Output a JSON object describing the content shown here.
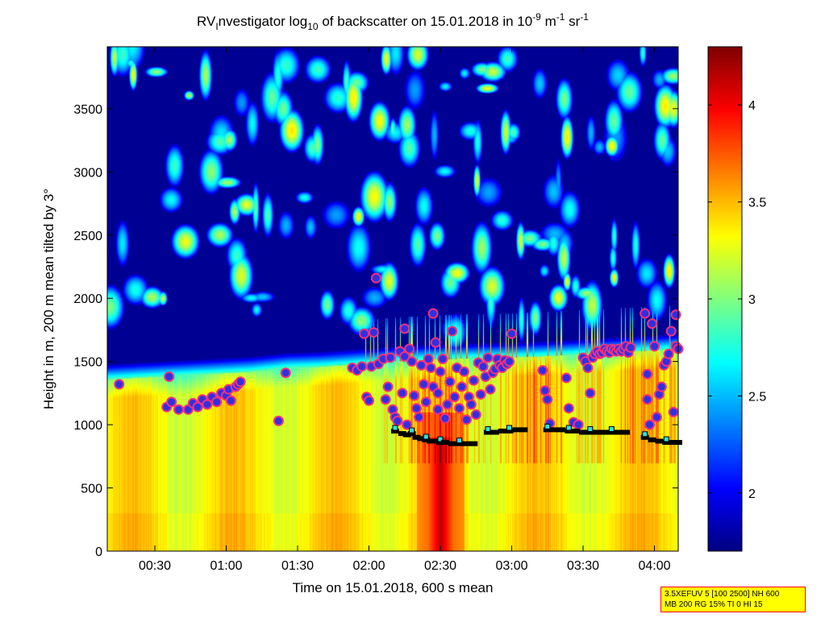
{
  "title": {
    "part1": "RV",
    "part2_sub": "I",
    "part3": "nvestigator log",
    "part4_sub": "10",
    "part5": " of backscatter on 15.01.2018 in 10",
    "part6_sup": "-9",
    "part7": " m",
    "part8_sup": "-1",
    "part9": " sr",
    "part10_sup": "-1"
  },
  "info_box": {
    "line1": "3.5XEFUV 5 [100 2500] NH 600",
    "line2": "MB 200 RG 15% TI 0 HI 15"
  },
  "chart_data": {
    "type": "heatmap",
    "xlabel": "Time on 15.01.2018, 600 s mean",
    "ylabel": "Height in m, 200 m mean tilted by 3°",
    "xlim_min": [
      10,
      250
    ],
    "ylim": [
      0,
      3990
    ],
    "x_ticks": [
      {
        "min": 30,
        "label": "00:30"
      },
      {
        "min": 60,
        "label": "01:00"
      },
      {
        "min": 90,
        "label": "01:30"
      },
      {
        "min": 120,
        "label": "02:00"
      },
      {
        "min": 150,
        "label": "02:30"
      },
      {
        "min": 180,
        "label": "03:00"
      },
      {
        "min": 210,
        "label": "03:30"
      },
      {
        "min": 240,
        "label": "04:00"
      }
    ],
    "y_ticks": [
      {
        "value": 0,
        "label": "0"
      },
      {
        "value": 500,
        "label": "500"
      },
      {
        "value": 1000,
        "label": "1000"
      },
      {
        "value": 1500,
        "label": "1500"
      },
      {
        "value": 2000,
        "label": "2000"
      },
      {
        "value": 2500,
        "label": "2500"
      },
      {
        "value": 3000,
        "label": "3000"
      },
      {
        "value": 3500,
        "label": "3500"
      }
    ],
    "colorbar": {
      "range": [
        1.7,
        4.3
      ],
      "ticks": [
        {
          "value": 2,
          "label": "2"
        },
        {
          "value": 2.5,
          "label": "2.5"
        },
        {
          "value": 3,
          "label": "3"
        },
        {
          "value": 3.5,
          "label": "3.5"
        },
        {
          "value": 4,
          "label": "4"
        }
      ],
      "colormap": "jet"
    },
    "boundary_layer_top": [
      [
        10,
        1360
      ],
      [
        30,
        1380
      ],
      [
        50,
        1400
      ],
      [
        70,
        1420
      ],
      [
        85,
        1450
      ],
      [
        100,
        1460
      ],
      [
        115,
        1480
      ],
      [
        130,
        1500
      ],
      [
        150,
        1520
      ],
      [
        170,
        1530
      ],
      [
        190,
        1540
      ],
      [
        210,
        1560
      ],
      [
        230,
        1580
      ],
      [
        250,
        1600
      ]
    ],
    "layer_markers": [
      [
        15,
        1320
      ],
      [
        35,
        1140
      ],
      [
        36,
        1380
      ],
      [
        37,
        1180
      ],
      [
        40,
        1120
      ],
      [
        44,
        1120
      ],
      [
        46,
        1170
      ],
      [
        48,
        1140
      ],
      [
        50,
        1200
      ],
      [
        52,
        1160
      ],
      [
        54,
        1220
      ],
      [
        56,
        1180
      ],
      [
        58,
        1250
      ],
      [
        60,
        1230
      ],
      [
        61,
        1280
      ],
      [
        62,
        1190
      ],
      [
        64,
        1300
      ],
      [
        65,
        1320
      ],
      [
        66,
        1340
      ],
      [
        82,
        1030
      ],
      [
        85,
        1410
      ],
      [
        113,
        1450
      ],
      [
        115,
        1430
      ],
      [
        117,
        1460
      ],
      [
        118,
        1720
      ],
      [
        119,
        1220
      ],
      [
        120,
        1190
      ],
      [
        121,
        1460
      ],
      [
        122,
        1730
      ],
      [
        123,
        2160
      ],
      [
        124,
        1480
      ],
      [
        126,
        1520
      ],
      [
        127,
        1200
      ],
      [
        128,
        1300
      ],
      [
        129,
        1530
      ],
      [
        130,
        1120
      ],
      [
        131,
        1060
      ],
      [
        132,
        1030
      ],
      [
        133,
        1580
      ],
      [
        134,
        1250
      ],
      [
        135,
        1540
      ],
      [
        135,
        1760
      ],
      [
        136,
        1000
      ],
      [
        137,
        1600
      ],
      [
        138,
        1500
      ],
      [
        139,
        1230
      ],
      [
        140,
        1130
      ],
      [
        141,
        1060
      ],
      [
        142,
        1470
      ],
      [
        143,
        1320
      ],
      [
        144,
        1180
      ],
      [
        145,
        1520
      ],
      [
        146,
        1450
      ],
      [
        147,
        1300
      ],
      [
        147,
        1880
      ],
      [
        148,
        1650
      ],
      [
        149,
        1120
      ],
      [
        149,
        1250
      ],
      [
        150,
        1420
      ],
      [
        151,
        1520
      ],
      [
        152,
        1050
      ],
      [
        153,
        1160
      ],
      [
        154,
        1340
      ],
      [
        155,
        1740
      ],
      [
        156,
        1220
      ],
      [
        157,
        1450
      ],
      [
        158,
        1130
      ],
      [
        159,
        1300
      ],
      [
        160,
        1420
      ],
      [
        161,
        1040
      ],
      [
        162,
        1220
      ],
      [
        163,
        1160
      ],
      [
        164,
        1350
      ],
      [
        165,
        1080
      ],
      [
        166,
        1490
      ],
      [
        167,
        1240
      ],
      [
        168,
        1460
      ],
      [
        169,
        1380
      ],
      [
        170,
        1530
      ],
      [
        171,
        1280
      ],
      [
        172,
        1410
      ],
      [
        173,
        1440
      ],
      [
        174,
        1520
      ],
      [
        175,
        1470
      ],
      [
        176,
        1450
      ],
      [
        177,
        1510
      ],
      [
        178,
        1480
      ],
      [
        179,
        1500
      ],
      [
        180,
        1720
      ],
      [
        193,
        1430
      ],
      [
        194,
        1270
      ],
      [
        195,
        1200
      ],
      [
        196,
        1010
      ],
      [
        203,
        1370
      ],
      [
        204,
        1130
      ],
      [
        206,
        1020
      ],
      [
        208,
        1000
      ],
      [
        210,
        1530
      ],
      [
        211,
        1500
      ],
      [
        212,
        1450
      ],
      [
        213,
        1250
      ],
      [
        214,
        1530
      ],
      [
        215,
        1560
      ],
      [
        216,
        1580
      ],
      [
        217,
        1560
      ],
      [
        218,
        1570
      ],
      [
        219,
        1600
      ],
      [
        220,
        1580
      ],
      [
        221,
        1570
      ],
      [
        222,
        1600
      ],
      [
        223,
        1590
      ],
      [
        224,
        1580
      ],
      [
        225,
        1600
      ],
      [
        226,
        1580
      ],
      [
        227,
        1600
      ],
      [
        228,
        1620
      ],
      [
        229,
        1570
      ],
      [
        230,
        1610
      ],
      [
        236,
        1880
      ],
      [
        237,
        1200
      ],
      [
        237,
        1400
      ],
      [
        238,
        1000
      ],
      [
        239,
        1800
      ],
      [
        240,
        1620
      ],
      [
        241,
        1060
      ],
      [
        242,
        1240
      ],
      [
        243,
        1300
      ],
      [
        244,
        1470
      ],
      [
        245,
        1500
      ],
      [
        246,
        1560
      ],
      [
        247,
        1740
      ],
      [
        248,
        1100
      ],
      [
        249,
        1620
      ],
      [
        249,
        1870
      ],
      [
        250,
        1600
      ]
    ],
    "lower_markers": [
      [
        131,
        950
      ],
      [
        134,
        930
      ],
      [
        136,
        920
      ],
      [
        138,
        930
      ],
      [
        140,
        900
      ],
      [
        142,
        890
      ],
      [
        144,
        880
      ],
      [
        146,
        870
      ],
      [
        148,
        870
      ],
      [
        150,
        860
      ],
      [
        152,
        860
      ],
      [
        155,
        850
      ],
      [
        158,
        850
      ],
      [
        161,
        850
      ],
      [
        164,
        850
      ],
      [
        170,
        940
      ],
      [
        173,
        940
      ],
      [
        176,
        950
      ],
      [
        179,
        950
      ],
      [
        182,
        960
      ],
      [
        185,
        960
      ],
      [
        195,
        960
      ],
      [
        198,
        960
      ],
      [
        201,
        960
      ],
      [
        204,
        950
      ],
      [
        207,
        950
      ],
      [
        210,
        940
      ],
      [
        213,
        940
      ],
      [
        216,
        940
      ],
      [
        219,
        940
      ],
      [
        222,
        940
      ],
      [
        225,
        940
      ],
      [
        228,
        940
      ],
      [
        236,
        900
      ],
      [
        239,
        880
      ],
      [
        242,
        870
      ],
      [
        245,
        860
      ],
      [
        248,
        860
      ],
      [
        250,
        860
      ]
    ]
  }
}
